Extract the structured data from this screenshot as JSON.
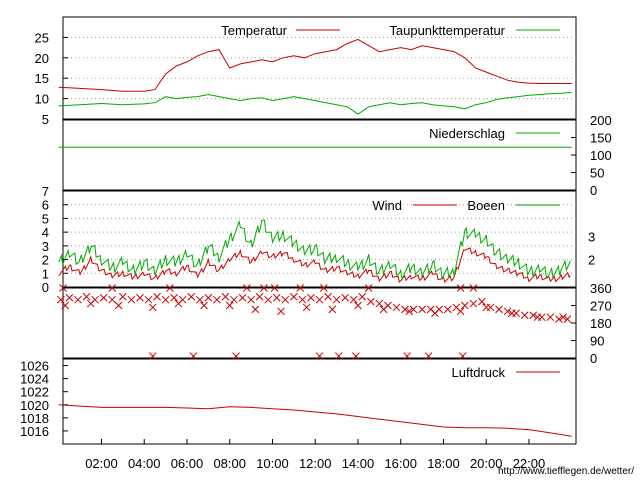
{
  "chart_data": [
    {
      "type": "line",
      "ylim": [
        5,
        30
      ],
      "yticks": [
        "5",
        "10",
        "15",
        "20",
        "25"
      ],
      "series": [
        {
          "name": "Temperatur",
          "color": "#cc0000",
          "x": [
            0,
            1,
            2,
            3,
            4,
            4.5,
            5,
            5.5,
            6,
            6.5,
            7,
            7.5,
            8,
            8.5,
            9,
            9.5,
            10,
            10.5,
            11,
            11.5,
            12,
            12.5,
            13,
            13.5,
            14,
            14.5,
            15,
            15.5,
            16,
            16.5,
            17,
            17.5,
            18,
            18.5,
            19,
            19.5,
            20,
            20.5,
            21,
            21.5,
            22,
            22.5,
            23,
            23.5,
            24
          ],
          "y": [
            12.8,
            12.5,
            12.2,
            11.8,
            11.8,
            12.2,
            16,
            18,
            19,
            20.5,
            21.5,
            22,
            17.5,
            18.5,
            19,
            19.5,
            19,
            20,
            20.5,
            20,
            21,
            21.5,
            22,
            23.5,
            24.5,
            23,
            21.5,
            22,
            22.5,
            22,
            23,
            22.5,
            22,
            21.5,
            20,
            17.5,
            16.5,
            15.5,
            14.5,
            14,
            13.8,
            13.7,
            13.7,
            13.7,
            13.7
          ]
        },
        {
          "name": "Taupunkttemperatur",
          "color": "#00aa00",
          "x": [
            0,
            1,
            2,
            3,
            4,
            4.5,
            5,
            5.5,
            6,
            6.5,
            7,
            7.5,
            8,
            8.5,
            9,
            9.5,
            10,
            10.5,
            11,
            11.5,
            12,
            12.5,
            13,
            13.5,
            14,
            14.5,
            15,
            15.5,
            16,
            16.5,
            17,
            17.5,
            18,
            18.5,
            19,
            19.5,
            20,
            20.5,
            21,
            21.5,
            22,
            22.5,
            23,
            23.5,
            24
          ],
          "y": [
            8.2,
            8.5,
            8.8,
            8.5,
            8.7,
            9,
            10.5,
            10,
            10.3,
            10.5,
            11,
            10.5,
            10,
            9.5,
            10,
            10.2,
            9.5,
            10,
            10.5,
            10,
            9.5,
            9,
            8.5,
            8,
            6.2,
            8,
            8.5,
            9,
            8.5,
            8.8,
            9,
            8.5,
            8.2,
            8,
            7.5,
            8.5,
            9,
            9.8,
            10.2,
            10.5,
            10.8,
            11,
            11.2,
            11.3,
            11.5
          ]
        }
      ]
    },
    {
      "type": "line",
      "ylim": [
        0,
        200
      ],
      "yticks": [
        "0",
        "50",
        "100",
        "150",
        "200"
      ],
      "series": [
        {
          "name": "Niederschlag",
          "color": "#00aa00",
          "x": [
            0,
            24
          ],
          "y": [
            122,
            122
          ]
        }
      ]
    },
    {
      "type": "line",
      "ylim": [
        0,
        7
      ],
      "yticks": [
        "0",
        "1",
        "2",
        "3",
        "4",
        "5",
        "6",
        "7"
      ],
      "right_ticks": [
        "2",
        "3"
      ],
      "series": [
        {
          "name": "Wind",
          "color": "#cc0000",
          "x": [
            0,
            0.5,
            1,
            1.5,
            2,
            2.5,
            3,
            3.5,
            4,
            4.5,
            5,
            5.5,
            6,
            6.5,
            7,
            7.5,
            8,
            8.5,
            9,
            9.5,
            10,
            10.5,
            11,
            11.5,
            12,
            12.5,
            13,
            13.5,
            14,
            14.5,
            15,
            15.5,
            16,
            16.5,
            17,
            17.5,
            18,
            18.5,
            19,
            19.5,
            20,
            20.5,
            21,
            21.5,
            22,
            22.5,
            23,
            23.5,
            24
          ],
          "y": [
            1,
            1.5,
            1,
            2,
            1.2,
            0.8,
            1,
            0.7,
            1,
            0.6,
            1.2,
            1,
            1.5,
            0.8,
            1.8,
            1.2,
            2,
            2.5,
            1.8,
            2.6,
            2.2,
            2.5,
            2,
            1.6,
            1.8,
            1.2,
            1.4,
            1,
            0.8,
            1.2,
            0.6,
            1,
            0.5,
            0.8,
            0.6,
            1,
            0.5,
            0.7,
            2.8,
            2.5,
            2.2,
            1.5,
            1.2,
            1,
            0.6,
            0.8,
            0.5,
            0.7,
            1
          ]
        },
        {
          "name": "Boeen",
          "color": "#00aa00",
          "x": [
            0,
            0.5,
            1,
            1.5,
            2,
            2.5,
            3,
            3.5,
            4,
            4.5,
            5,
            5.5,
            6,
            6.5,
            7,
            7.5,
            8,
            8.5,
            9,
            9.5,
            10,
            10.5,
            11,
            11.5,
            12,
            12.5,
            13,
            13.5,
            14,
            14.5,
            15,
            15.5,
            16,
            16.5,
            17,
            17.5,
            18,
            18.5,
            19,
            19.5,
            20,
            20.5,
            21,
            21.5,
            22,
            22.5,
            23,
            23.5,
            24
          ],
          "y": [
            1.8,
            2.5,
            1.8,
            3,
            2,
            1.4,
            1.8,
            1.2,
            1.8,
            1.1,
            2,
            1.8,
            2.5,
            1.5,
            3,
            2.2,
            3.5,
            4.5,
            3,
            4.8,
            3.5,
            3.8,
            3.2,
            2.7,
            2.8,
            2,
            2.2,
            1.7,
            1.4,
            2,
            1.1,
            1.6,
            0.9,
            1.4,
            1.1,
            1.6,
            0.9,
            1.2,
            4,
            3.8,
            3.4,
            2.5,
            2,
            1.8,
            1.1,
            1.4,
            0.9,
            1.3,
            1.8
          ]
        }
      ]
    },
    {
      "type": "scatter",
      "ylim": [
        0,
        360
      ],
      "yticks": [
        "0",
        "90",
        "180",
        "270",
        "360"
      ],
      "color": "#cc0000",
      "x": [
        0.1,
        0.5,
        0.9,
        1.3,
        1.7,
        2.1,
        2.5,
        3,
        3.4,
        3.8,
        4.2,
        4.6,
        5,
        5.4,
        5.8,
        6.2,
        6.6,
        7,
        7.4,
        7.8,
        8.2,
        8.6,
        9,
        9.4,
        9.8,
        10.2,
        10.6,
        11,
        11.4,
        11.8,
        12.2,
        12.6,
        13,
        13.4,
        13.8,
        14.2,
        14.6,
        15,
        15.4,
        15.8,
        16.2,
        16.6,
        17,
        17.4,
        17.8,
        18.2,
        18.6,
        19,
        19.4,
        19.8,
        20.2,
        20.6,
        21,
        21.4,
        21.8,
        22.2,
        22.6,
        23,
        23.4,
        23.8,
        0.3,
        1.5,
        2.8,
        4.4,
        5.6,
        6.8,
        8,
        9.2,
        10.4,
        11.6,
        12.8,
        14,
        15.2,
        16.4,
        17.6,
        18.8,
        20,
        21.2,
        22.4,
        23.6,
        0.2,
        2.5,
        5.2,
        8.8,
        9.6,
        10.1,
        11.3,
        12.4,
        14.5,
        18.8,
        19.4,
        4.4,
        6.3,
        8.3,
        12.2,
        13.1,
        13.9,
        16.3,
        17.3,
        18.9
      ],
      "y": [
        300,
        310,
        300,
        315,
        300,
        310,
        300,
        315,
        300,
        310,
        300,
        315,
        300,
        310,
        300,
        315,
        300,
        310,
        300,
        315,
        300,
        310,
        300,
        315,
        300,
        310,
        300,
        315,
        300,
        310,
        300,
        315,
        300,
        310,
        300,
        315,
        290,
        280,
        270,
        260,
        250,
        250,
        250,
        250,
        250,
        250,
        260,
        270,
        280,
        290,
        260,
        250,
        240,
        230,
        220,
        220,
        210,
        210,
        200,
        200,
        270,
        280,
        270,
        260,
        280,
        270,
        270,
        250,
        240,
        260,
        250,
        270,
        250,
        240,
        230,
        240,
        260,
        230,
        210,
        210,
        360,
        360,
        360,
        360,
        360,
        360,
        360,
        360,
        360,
        360,
        360,
        10,
        10,
        10,
        10,
        10,
        10,
        10,
        10,
        10
      ]
    },
    {
      "type": "line",
      "ylim": [
        1014,
        1027
      ],
      "yticks": [
        "1016",
        "1018",
        "1020",
        "1022",
        "1024",
        "1026"
      ],
      "xlim": [
        0,
        24
      ],
      "xticks": [
        "02:00",
        "04:00",
        "06:00",
        "08:00",
        "10:00",
        "12:00",
        "14:00",
        "16:00",
        "18:00",
        "20:00",
        "22:00"
      ],
      "series": [
        {
          "name": "Luftdruck",
          "color": "#cc0000",
          "x": [
            0,
            1,
            2,
            3,
            4,
            5,
            6,
            7,
            8,
            9,
            10,
            11,
            12,
            13,
            14,
            15,
            16,
            17,
            18,
            19,
            20,
            21,
            22,
            23,
            24
          ],
          "y": [
            1020,
            1019.8,
            1019.6,
            1019.6,
            1019.6,
            1019.6,
            1019.5,
            1019.4,
            1019.7,
            1019.6,
            1019.4,
            1019.2,
            1018.9,
            1018.6,
            1018.2,
            1017.8,
            1017.4,
            1017.0,
            1016.6,
            1016.5,
            1016.5,
            1016.4,
            1016.2,
            1015.7,
            1015.2
          ]
        }
      ]
    }
  ],
  "legend": {
    "temperatur": "Temperatur",
    "taupunkt": "Taupunkttemperatur",
    "niederschlag": "Niederschlag",
    "wind": "Wind",
    "boeen": "Boeen",
    "luftdruck": "Luftdruck"
  },
  "colors": {
    "red": "#cc0000",
    "green": "#00aa00",
    "grid": "#999999"
  },
  "source_url": "http://www.tiefflegen.de/wetter/"
}
